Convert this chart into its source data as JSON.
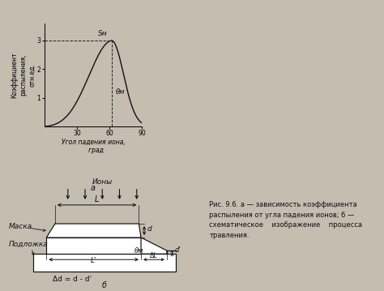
{
  "bg_color": "#c4bdb0",
  "fig_bg": "#c4bdb0",
  "plot_a": {
    "title": "а",
    "xlabel": "Угол падения иона,\n   град",
    "ylabel": "Коэффициент\nраспыления,\nотн.ед.",
    "x_ticks": [
      30,
      60,
      90
    ],
    "y_ticks": [
      1,
      2,
      3
    ],
    "sm_label": "Sм",
    "theta_m_label": "θм",
    "sm_value": 3.0,
    "theta_m_deg": 62,
    "curve_color": "#111111",
    "dashed_color": "#222222"
  },
  "diagram_b": {
    "title": "б",
    "ions_label": "Ионы",
    "mask_label": "Маска",
    "substrate_label": "Подложка",
    "L_label": "L",
    "L_prime_label": "L'",
    "dL_label": "ΔL",
    "d_label": "d",
    "d_prime_label": "d'",
    "theta_m_label": "θм",
    "delta_d_label": "Δd = d - d'",
    "caption": "Рис. 9.6. а — зависимость коэффициента\nраспыления от угла падения ионов; б —\nсхематическое    изображение    процесса\nтравления."
  }
}
